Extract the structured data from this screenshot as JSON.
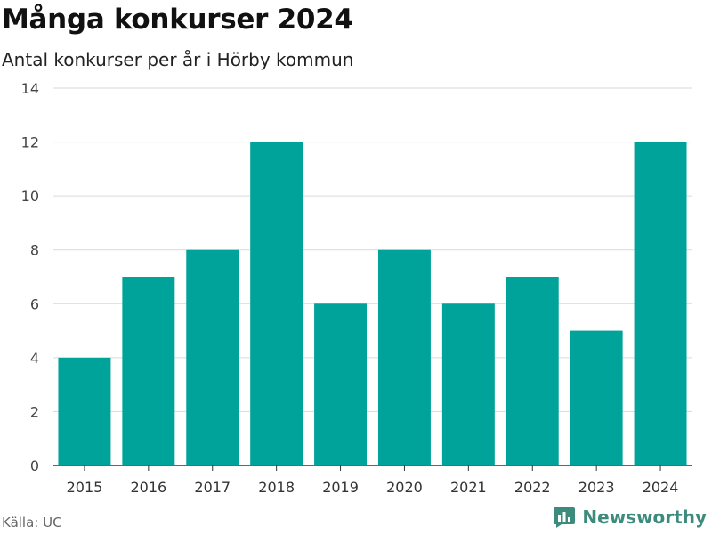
{
  "header": {
    "title": "Många konkurser 2024",
    "subtitle": "Antal konkurser per år i Hörby kommun"
  },
  "footer": {
    "source": "Källa: UC",
    "brand": "Newsworthy"
  },
  "colors": {
    "bar": "#00a39a",
    "grid": "#d9d9d9",
    "axis": "#333333",
    "brand": "#3d8b7d"
  },
  "chart_data": {
    "type": "bar",
    "title": "Många konkurser 2024",
    "subtitle": "Antal konkurser per år i Hörby kommun",
    "categories": [
      "2015",
      "2016",
      "2017",
      "2018",
      "2019",
      "2020",
      "2021",
      "2022",
      "2023",
      "2024"
    ],
    "values": [
      4,
      7,
      8,
      12,
      6,
      8,
      6,
      7,
      5,
      12
    ],
    "xlabel": "",
    "ylabel": "",
    "ylim": [
      0,
      14
    ],
    "yticks": [
      0,
      2,
      4,
      6,
      8,
      10,
      12,
      14
    ],
    "grid": true,
    "legend": "none"
  }
}
